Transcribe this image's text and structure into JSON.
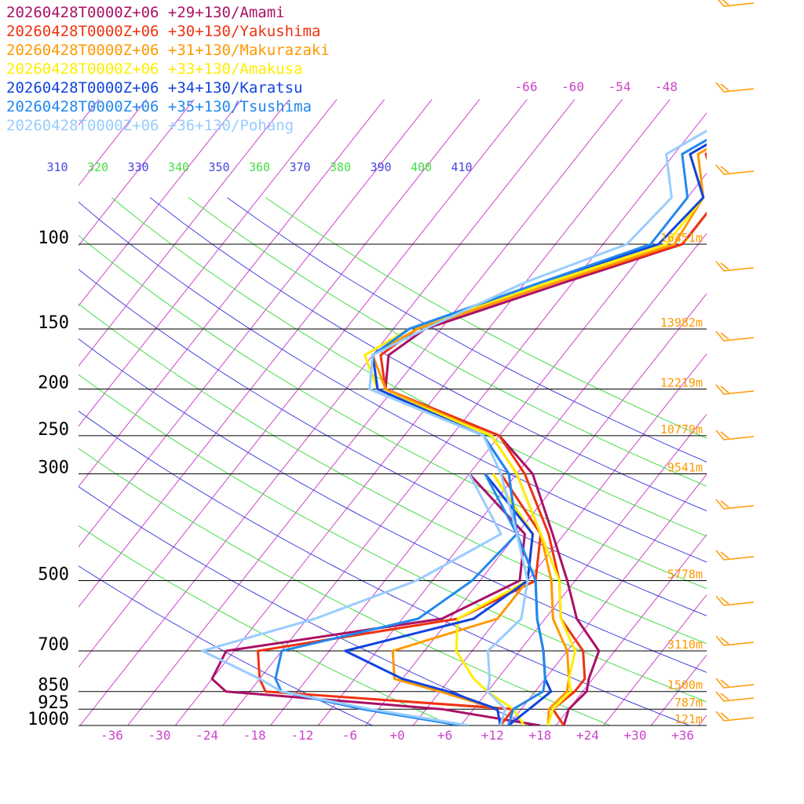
{
  "chart_data": {
    "type": "line",
    "title": "",
    "xlabel": "",
    "ylabel": "",
    "x_ticks": [
      "-36",
      "-30",
      "-24",
      "-18",
      "-12",
      "-6",
      "+0",
      "+6",
      "+12",
      "+18",
      "+24",
      "+30",
      "+36"
    ],
    "y_ticks": [
      "100",
      "150",
      "200",
      "250",
      "300",
      "500",
      "700",
      "850",
      "925",
      "1000"
    ],
    "xlim": [
      -40,
      40
    ],
    "ylim": [
      1000,
      100
    ],
    "height_labels": [
      {
        "p": 100,
        "text": "16451m"
      },
      {
        "p": 150,
        "text": "13982m"
      },
      {
        "p": 200,
        "text": "12219m"
      },
      {
        "p": 250,
        "text": "10779m"
      },
      {
        "p": 300,
        "text": "9541m"
      },
      {
        "p": 500,
        "text": "5778m"
      },
      {
        "p": 700,
        "text": "3110m"
      },
      {
        "p": 850,
        "text": "1500m"
      },
      {
        "p": 925,
        "text": "787m"
      },
      {
        "p": 1000,
        "text": "121m"
      }
    ],
    "theta_labels": [
      "310",
      "320",
      "330",
      "340",
      "350",
      "360",
      "370",
      "380",
      "390",
      "400",
      "410"
    ],
    "mixing_labels": [
      "-66",
      "-60",
      "-54",
      "-48"
    ],
    "colors": {
      "isotherm": "#cc44cc",
      "theta_blue": "#4444dd",
      "theta_green": "#44dd44",
      "pressure": "#000000",
      "height": "#ff9900",
      "tick": "#cc44cc",
      "barb": "#ff9900"
    },
    "series": [
      {
        "name": "20260428T0000Z+06 +29+130/Amami",
        "color": "#aa1166",
        "temp": [
          [
            1000,
            21
          ],
          [
            925,
            20
          ],
          [
            850,
            20.5
          ],
          [
            800,
            19.5
          ],
          [
            700,
            18
          ],
          [
            600,
            12
          ],
          [
            500,
            7
          ],
          [
            400,
            0.5
          ],
          [
            300,
            -8
          ],
          [
            250,
            -16
          ],
          [
            200,
            -35
          ],
          [
            170,
            -38
          ],
          [
            150,
            -36
          ],
          [
            120,
            -23
          ],
          [
            100,
            -12
          ],
          [
            80,
            -12
          ],
          [
            65,
            -18
          ],
          [
            40,
            -5
          ]
        ],
        "dew": [
          [
            1000,
            18
          ],
          [
            925,
            4
          ],
          [
            850,
            -25
          ],
          [
            800,
            -28
          ],
          [
            700,
            -29
          ],
          [
            600,
            -5
          ],
          [
            500,
            1
          ],
          [
            400,
            -3
          ],
          [
            300,
            -16
          ]
        ]
      },
      {
        "name": "20260428T0000Z+06 +30+130/Yakushima",
        "color": "#ee3311",
        "temp": [
          [
            1000,
            21
          ],
          [
            925,
            18
          ],
          [
            850,
            19
          ],
          [
            800,
            19
          ],
          [
            700,
            16
          ],
          [
            600,
            10
          ],
          [
            500,
            6
          ],
          [
            400,
            0
          ],
          [
            300,
            -9
          ],
          [
            250,
            -16
          ],
          [
            200,
            -35
          ],
          [
            170,
            -39
          ],
          [
            150,
            -37
          ],
          [
            120,
            -24
          ],
          [
            100,
            -12
          ],
          [
            80,
            -12
          ],
          [
            65,
            -18
          ],
          [
            40,
            -6
          ]
        ],
        "dew": [
          [
            1000,
            13
          ],
          [
            925,
            13
          ],
          [
            850,
            -20
          ],
          [
            800,
            -22
          ],
          [
            700,
            -25
          ],
          [
            600,
            -3
          ],
          [
            500,
            3
          ],
          [
            400,
            -1
          ],
          [
            300,
            -12
          ]
        ]
      },
      {
        "name": "20260428T0000Z+06 +31+130/Makurazaki",
        "color": "#ff9900",
        "temp": [
          [
            1000,
            19
          ],
          [
            925,
            17.5
          ],
          [
            850,
            18
          ],
          [
            800,
            17
          ],
          [
            700,
            14
          ],
          [
            600,
            9
          ],
          [
            500,
            5
          ],
          [
            400,
            -1
          ],
          [
            300,
            -10
          ],
          [
            250,
            -17
          ],
          [
            200,
            -35
          ],
          [
            170,
            -40
          ],
          [
            150,
            -37
          ],
          [
            120,
            -24
          ],
          [
            100,
            -13
          ],
          [
            80,
            -14
          ],
          [
            65,
            -19
          ],
          [
            40,
            -7
          ]
        ],
        "dew": [
          [
            1000,
            13
          ],
          [
            925,
            11
          ],
          [
            850,
            2
          ],
          [
            800,
            -5
          ],
          [
            700,
            -8
          ],
          [
            600,
            2
          ],
          [
            500,
            2
          ],
          [
            400,
            -2
          ],
          [
            300,
            -13
          ]
        ]
      },
      {
        "name": "20260428T0000Z+06 +33+130/Amakusa",
        "color": "#ffee00",
        "temp": [
          [
            1000,
            19
          ],
          [
            925,
            18
          ],
          [
            850,
            18.5
          ],
          [
            800,
            17
          ],
          [
            700,
            15
          ],
          [
            600,
            10
          ],
          [
            500,
            6
          ],
          [
            400,
            -1
          ],
          [
            300,
            -10
          ],
          [
            250,
            -17
          ],
          [
            200,
            -36
          ],
          [
            170,
            -41
          ],
          [
            150,
            -38
          ],
          [
            120,
            -25
          ],
          [
            100,
            -14
          ],
          [
            80,
            -14
          ],
          [
            65,
            -20
          ],
          [
            40,
            -8
          ]
        ],
        "dew": [
          [
            1000,
            16
          ],
          [
            925,
            13
          ],
          [
            850,
            8
          ],
          [
            800,
            5
          ],
          [
            700,
            0
          ],
          [
            600,
            -3
          ],
          [
            500,
            2
          ],
          [
            400,
            -2
          ],
          [
            300,
            -13
          ]
        ]
      },
      {
        "name": "20260428T0000Z+06 +34+130/Karatsu",
        "color": "#1144dd",
        "temp": [
          [
            1000,
            14
          ],
          [
            925,
            15
          ],
          [
            850,
            16
          ],
          [
            800,
            14
          ],
          [
            700,
            11
          ],
          [
            600,
            7
          ],
          [
            500,
            3
          ],
          [
            400,
            -4
          ],
          [
            300,
            -11
          ],
          [
            250,
            -18
          ],
          [
            200,
            -36
          ],
          [
            170,
            -40
          ],
          [
            150,
            -38
          ],
          [
            120,
            -26
          ],
          [
            100,
            -15
          ],
          [
            80,
            -14
          ],
          [
            65,
            -20
          ],
          [
            40,
            -8
          ]
        ],
        "dew": [
          [
            1000,
            13
          ],
          [
            925,
            11
          ],
          [
            850,
            3
          ],
          [
            800,
            -4
          ],
          [
            700,
            -14
          ],
          [
            600,
            -1
          ],
          [
            500,
            2
          ],
          [
            400,
            -2
          ],
          [
            300,
            -14
          ]
        ]
      },
      {
        "name": "20260428T0000Z+06 +35+130/Tsushima",
        "color": "#2288ee",
        "temp": [
          [
            1000,
            14
          ],
          [
            925,
            13
          ],
          [
            850,
            15
          ],
          [
            800,
            14
          ],
          [
            700,
            11
          ],
          [
            600,
            7
          ],
          [
            500,
            3
          ],
          [
            400,
            -4
          ],
          [
            300,
            -11
          ],
          [
            250,
            -18
          ],
          [
            200,
            -37
          ],
          [
            170,
            -40
          ],
          [
            150,
            -38
          ],
          [
            120,
            -26
          ],
          [
            100,
            -16
          ],
          [
            80,
            -16
          ],
          [
            65,
            -21
          ],
          [
            40,
            -9
          ]
        ],
        "dew": [
          [
            1000,
            8
          ],
          [
            925,
            -6
          ],
          [
            850,
            -18
          ],
          [
            800,
            -20
          ],
          [
            700,
            -22
          ],
          [
            600,
            -8
          ],
          [
            500,
            -5
          ],
          [
            400,
            -4
          ],
          [
            300,
            -14
          ]
        ]
      },
      {
        "name": "20260428T0000Z+06 +36+130/Pohang",
        "color": "#99ccff",
        "temp": [
          [
            1000,
            13
          ],
          [
            925,
            12
          ],
          [
            850,
            8
          ],
          [
            800,
            7
          ],
          [
            700,
            4
          ],
          [
            600,
            5
          ],
          [
            500,
            2
          ],
          [
            400,
            -4
          ],
          [
            300,
            -12
          ],
          [
            250,
            -18
          ],
          [
            200,
            -37
          ],
          [
            170,
            -40
          ],
          [
            150,
            -36
          ],
          [
            120,
            -28
          ],
          [
            100,
            -19
          ],
          [
            80,
            -18
          ],
          [
            65,
            -23
          ],
          [
            40,
            -11
          ]
        ],
        "dew": [
          [
            1000,
            9
          ],
          [
            925,
            -5
          ],
          [
            850,
            -18
          ],
          [
            800,
            -22
          ],
          [
            700,
            -32
          ],
          [
            600,
            -21
          ],
          [
            500,
            -12
          ],
          [
            400,
            -6
          ],
          [
            300,
            -16
          ]
        ]
      }
    ]
  }
}
